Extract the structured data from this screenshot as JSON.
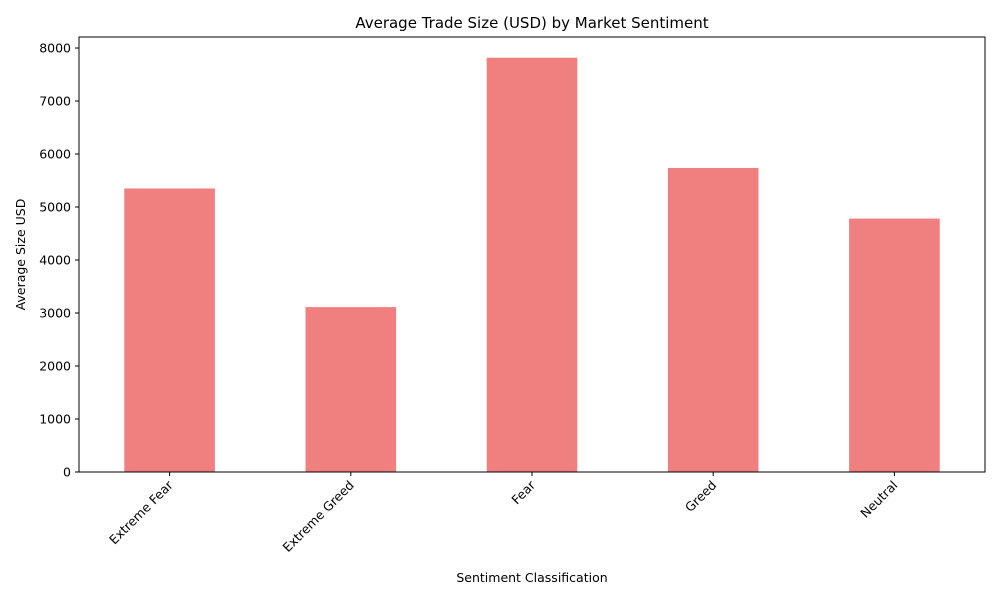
{
  "chart_data": {
    "type": "bar",
    "title": "Average Trade Size (USD) by Market Sentiment",
    "xlabel": "Sentiment Classification",
    "ylabel": "Average Size USD",
    "categories": [
      "Extreme Fear",
      "Extreme Greed",
      "Fear",
      "Greed",
      "Neutral"
    ],
    "values": [
      5350,
      3112,
      7817,
      5737,
      4782
    ],
    "ylim": [
      0,
      8208
    ],
    "yticks": [
      0,
      1000,
      2000,
      3000,
      4000,
      5000,
      6000,
      7000,
      8000
    ],
    "bar_color": "#f08080",
    "grid": false,
    "legend": "none"
  }
}
